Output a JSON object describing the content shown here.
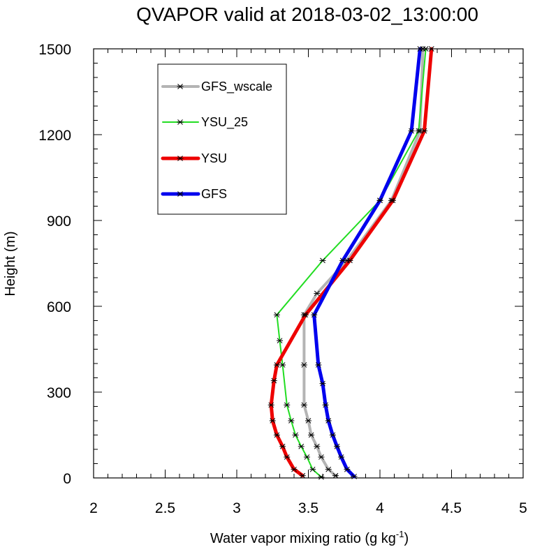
{
  "chart_data": {
    "type": "line",
    "title": "QVAPOR valid at 2018-03-02_13:00:00",
    "xlabel": "Water vapor mixing ratio (g kg",
    "xlabel_sup": "-1",
    "xlabel_end": ")",
    "ylabel": "Height (m)",
    "xlim": [
      2,
      5
    ],
    "ylim": [
      0,
      1500
    ],
    "xticks": [
      2,
      2.5,
      3,
      3.5,
      4,
      4.5,
      5
    ],
    "xtick_labels": [
      "2",
      "2.5",
      "3",
      "3.5",
      "4",
      "4.5",
      "5"
    ],
    "yticks": [
      0,
      300,
      600,
      900,
      1200,
      1500
    ],
    "ytick_labels": [
      "0",
      "300",
      "600",
      "900",
      "1200",
      "1500"
    ],
    "x_minor_step": 0.1,
    "y_minor_step": 50,
    "legend_position": "top-left",
    "marker": "asterisk",
    "series": [
      {
        "name": "GFS_wscale",
        "color": "#b4b4b4",
        "line_width": 4,
        "x": [
          3.69,
          3.64,
          3.59,
          3.56,
          3.52,
          3.5,
          3.47,
          3.47,
          3.47,
          3.56,
          3.77,
          4.08,
          4.28,
          4.3
        ],
        "y": [
          8,
          30,
          73,
          110,
          150,
          200,
          255,
          395,
          570,
          645,
          760,
          970,
          1213,
          1500
        ]
      },
      {
        "name": "YSU_25",
        "color": "#22dd22",
        "line_width": 2,
        "x": [
          3.59,
          3.53,
          3.49,
          3.45,
          3.41,
          3.38,
          3.35,
          3.32,
          3.3,
          3.28,
          3.6,
          4.0,
          4.27,
          4.32
        ],
        "y": [
          3,
          30,
          73,
          110,
          150,
          200,
          255,
          395,
          480,
          570,
          760,
          970,
          1213,
          1500
        ]
      },
      {
        "name": "YSU",
        "color": "#ee0000",
        "line_width": 5,
        "x": [
          3.46,
          3.4,
          3.35,
          3.32,
          3.28,
          3.25,
          3.24,
          3.26,
          3.28,
          3.48,
          3.79,
          4.09,
          4.31,
          4.36
        ],
        "y": [
          8,
          30,
          73,
          110,
          150,
          200,
          255,
          340,
          395,
          570,
          760,
          970,
          1213,
          1500
        ]
      },
      {
        "name": "GFS",
        "color": "#0000ee",
        "line_width": 5,
        "x": [
          3.82,
          3.77,
          3.73,
          3.7,
          3.67,
          3.64,
          3.62,
          3.6,
          3.57,
          3.54,
          3.74,
          4.0,
          4.22,
          4.28
        ],
        "y": [
          5,
          30,
          73,
          110,
          150,
          200,
          255,
          330,
          395,
          570,
          760,
          970,
          1213,
          1500
        ]
      }
    ]
  }
}
